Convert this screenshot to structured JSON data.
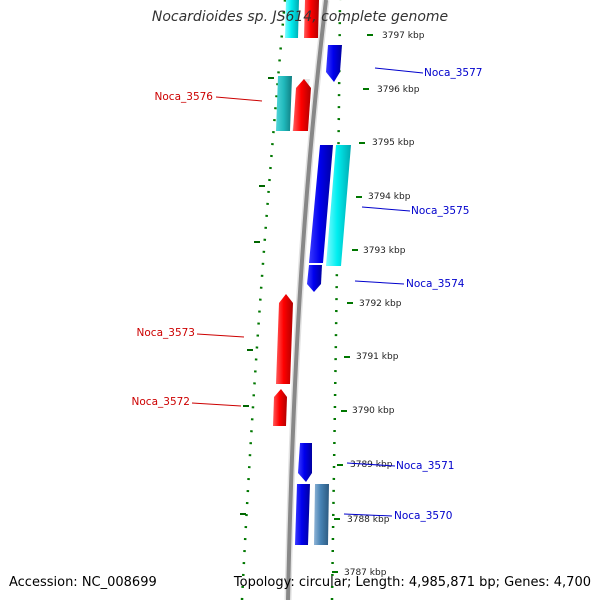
{
  "title": "Nocardioides sp. JS614, complete genome",
  "footer": {
    "accession": "Accession: NC_008699",
    "summary": "Topology: circular; Length: 4,985,871 bp; Genes: 4,700"
  },
  "scale_ticks": [
    "3797 kbp",
    "3796 kbp",
    "3795 kbp",
    "3794 kbp",
    "3793 kbp",
    "3792 kbp",
    "3791 kbp",
    "3790 kbp",
    "3789 kbp",
    "3788 kbp",
    "3787 kbp"
  ],
  "gene_labels": {
    "forward": [
      "Noca_3576",
      "Noca_3573",
      "Noca_3572"
    ],
    "reverse": [
      "Noca_3577",
      "Noca_3575",
      "Noca_3574",
      "Noca_3571",
      "Noca_3570"
    ]
  },
  "colors": {
    "forward_cds": "#ff0000",
    "reverse_cds": "#0000ee",
    "cyan_feature": "#00e5ee",
    "steelblue_feature": "#4682b4",
    "backbone": "#888888",
    "dotted_track": "#007700",
    "forward_label": "#cc0000",
    "reverse_label": "#0000cc"
  }
}
